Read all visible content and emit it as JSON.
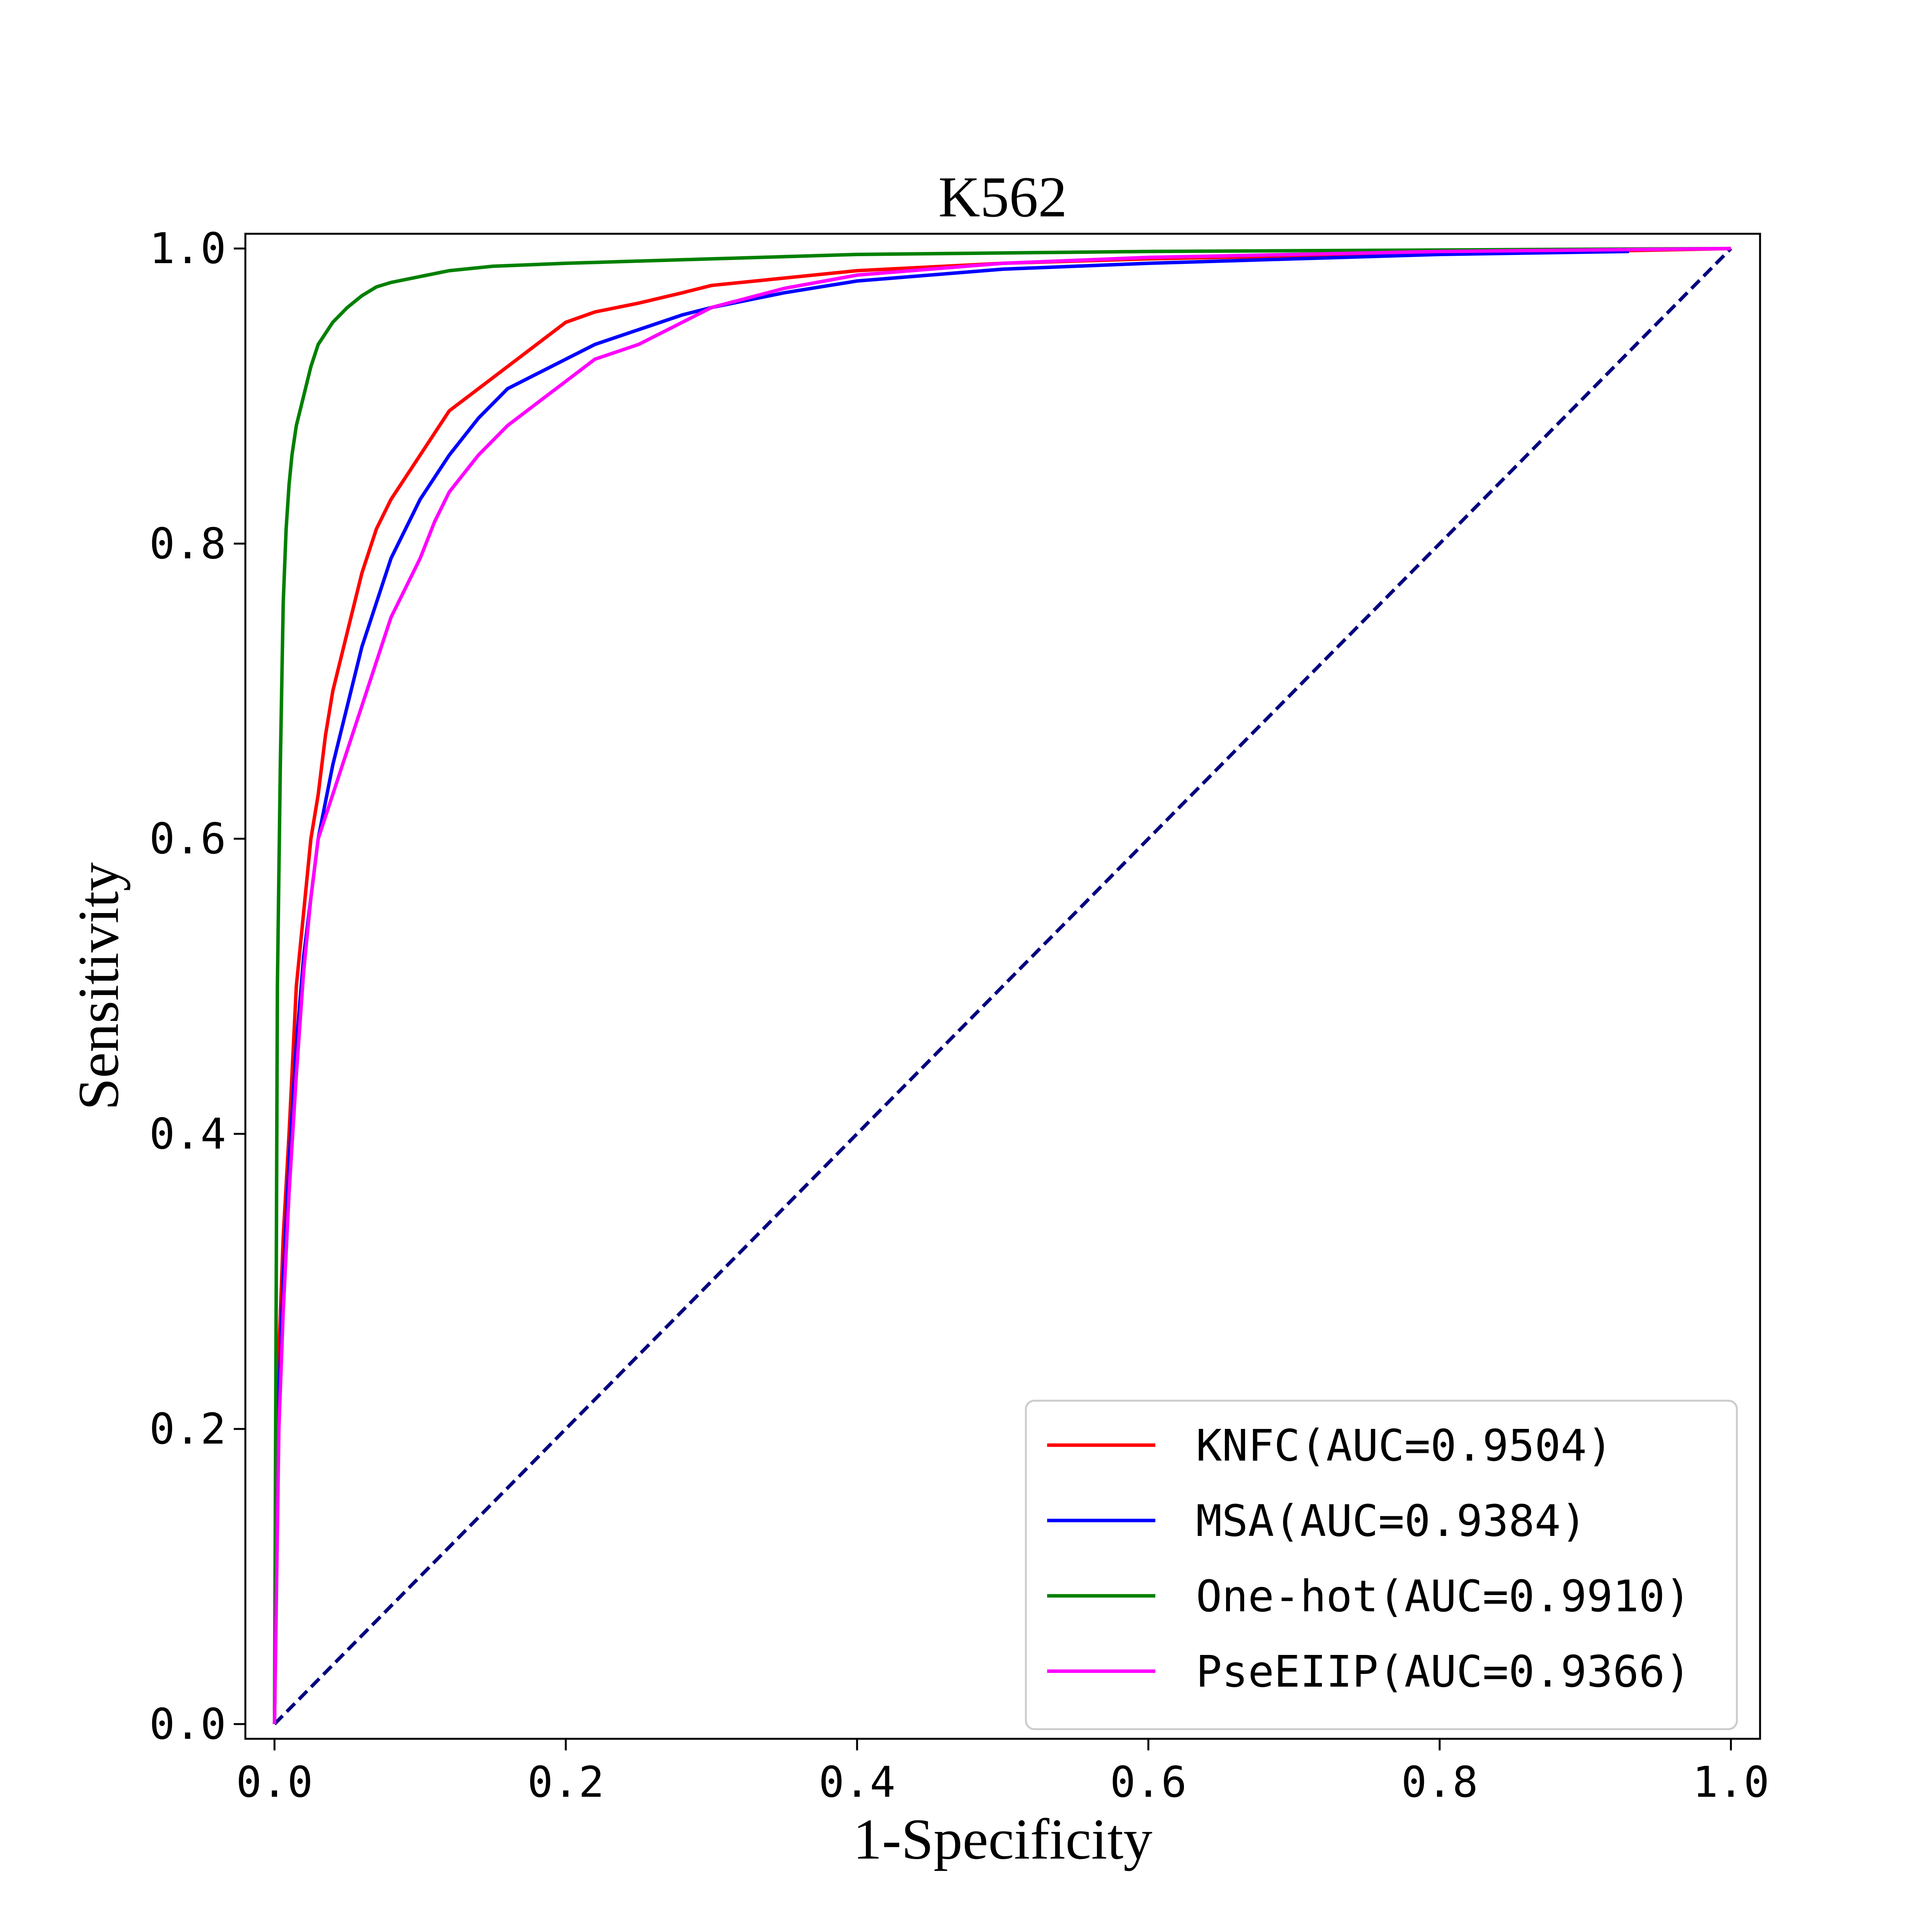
{
  "chart_data": {
    "type": "line",
    "title": "K562",
    "xlabel": "1-Specificity",
    "ylabel": "Sensitivity",
    "xlim": [
      -0.02,
      1.02
    ],
    "ylim": [
      -0.01,
      1.01
    ],
    "xticks": [
      "0.0",
      "0.2",
      "0.4",
      "0.6",
      "0.8",
      "1.0"
    ],
    "yticks": [
      "0.0",
      "0.2",
      "0.4",
      "0.6",
      "0.8",
      "1.0"
    ],
    "grid": false,
    "legend_position": "lower-right",
    "series": [
      {
        "name": "KNFC(AUC=0.9504)",
        "color": "#ff0000",
        "x": [
          0,
          0.003,
          0.006,
          0.01,
          0.015,
          0.02,
          0.025,
          0.03,
          0.035,
          0.04,
          0.045,
          0.05,
          0.06,
          0.07,
          0.08,
          0.09,
          0.1,
          0.11,
          0.12,
          0.14,
          0.16,
          0.18,
          0.2,
          0.22,
          0.25,
          0.28,
          0.3,
          0.35,
          0.4,
          0.5,
          0.6,
          0.7,
          0.8,
          0.9,
          1.0
        ],
        "y": [
          0,
          0.25,
          0.33,
          0.4,
          0.5,
          0.55,
          0.6,
          0.63,
          0.67,
          0.7,
          0.72,
          0.74,
          0.78,
          0.81,
          0.83,
          0.845,
          0.86,
          0.875,
          0.89,
          0.905,
          0.92,
          0.935,
          0.95,
          0.957,
          0.963,
          0.97,
          0.975,
          0.98,
          0.985,
          0.99,
          0.993,
          0.995,
          0.997,
          0.998,
          1.0
        ]
      },
      {
        "name": "MSA(AUC=0.9384)",
        "color": "#0000ff",
        "x": [
          0,
          0.003,
          0.006,
          0.01,
          0.015,
          0.02,
          0.025,
          0.03,
          0.04,
          0.05,
          0.06,
          0.07,
          0.08,
          0.09,
          0.1,
          0.12,
          0.14,
          0.16,
          0.18,
          0.2,
          0.22,
          0.25,
          0.28,
          0.3,
          0.35,
          0.4,
          0.5,
          0.6,
          0.7,
          0.8,
          0.93
        ],
        "y": [
          0,
          0.22,
          0.3,
          0.38,
          0.46,
          0.52,
          0.56,
          0.6,
          0.65,
          0.69,
          0.73,
          0.76,
          0.79,
          0.81,
          0.83,
          0.86,
          0.885,
          0.905,
          0.915,
          0.925,
          0.935,
          0.945,
          0.955,
          0.96,
          0.97,
          0.978,
          0.986,
          0.99,
          0.993,
          0.996,
          0.998
        ]
      },
      {
        "name": "One-hot(AUC=0.9910)",
        "color": "#008000",
        "x": [
          0,
          0.002,
          0.004,
          0.006,
          0.008,
          0.01,
          0.012,
          0.015,
          0.02,
          0.025,
          0.03,
          0.04,
          0.05,
          0.06,
          0.07,
          0.08,
          0.1,
          0.12,
          0.15,
          0.2,
          0.3,
          0.4,
          0.6,
          0.8,
          1.0
        ],
        "y": [
          0,
          0.5,
          0.65,
          0.76,
          0.81,
          0.84,
          0.86,
          0.88,
          0.9,
          0.92,
          0.935,
          0.95,
          0.96,
          0.968,
          0.974,
          0.977,
          0.981,
          0.985,
          0.988,
          0.99,
          0.993,
          0.996,
          0.998,
          0.999,
          1.0
        ]
      },
      {
        "name": "PseEIIP(AUC=0.9366)",
        "color": "#ff00ff",
        "x": [
          0,
          0.003,
          0.006,
          0.01,
          0.015,
          0.02,
          0.025,
          0.03,
          0.04,
          0.05,
          0.06,
          0.07,
          0.08,
          0.09,
          0.1,
          0.11,
          0.12,
          0.14,
          0.16,
          0.18,
          0.2,
          0.22,
          0.25,
          0.28,
          0.3,
          0.35,
          0.4,
          0.5,
          0.6,
          0.7,
          0.8,
          1.0
        ],
        "y": [
          0,
          0.2,
          0.28,
          0.36,
          0.44,
          0.51,
          0.56,
          0.6,
          0.63,
          0.66,
          0.69,
          0.72,
          0.75,
          0.77,
          0.79,
          0.815,
          0.835,
          0.86,
          0.88,
          0.895,
          0.91,
          0.925,
          0.935,
          0.95,
          0.96,
          0.973,
          0.982,
          0.99,
          0.994,
          0.996,
          0.998,
          1.0
        ]
      },
      {
        "name": "",
        "color": "#000080",
        "dashed": true,
        "x": [
          0,
          1
        ],
        "y": [
          0,
          1
        ]
      }
    ]
  }
}
